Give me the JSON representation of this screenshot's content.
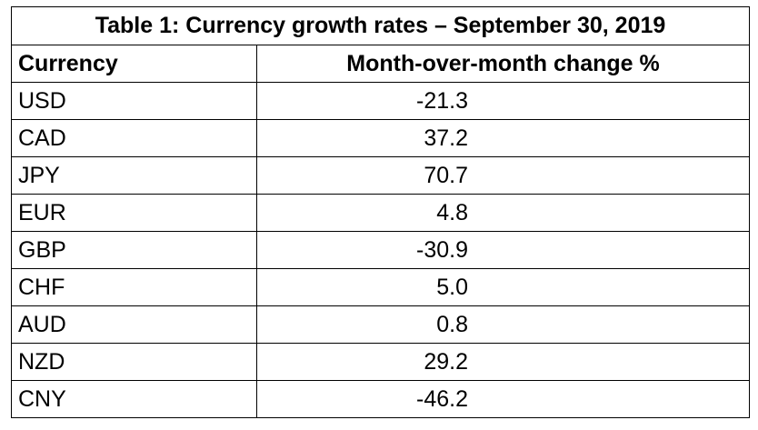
{
  "chart_data": {
    "type": "table",
    "title": "Table 1: Currency growth rates – September 30, 2019",
    "columns": [
      "Currency",
      "Month-over-month change %"
    ],
    "rows": [
      {
        "currency": "USD",
        "change": "-21.3"
      },
      {
        "currency": "CAD",
        "change": "37.2"
      },
      {
        "currency": "JPY",
        "change": "70.7"
      },
      {
        "currency": "EUR",
        "change": "4.8"
      },
      {
        "currency": "GBP",
        "change": "-30.9"
      },
      {
        "currency": "CHF",
        "change": "5.0"
      },
      {
        "currency": "AUD",
        "change": "0.8"
      },
      {
        "currency": "NZD",
        "change": "29.2"
      },
      {
        "currency": "CNY",
        "change": "-46.2"
      }
    ]
  }
}
